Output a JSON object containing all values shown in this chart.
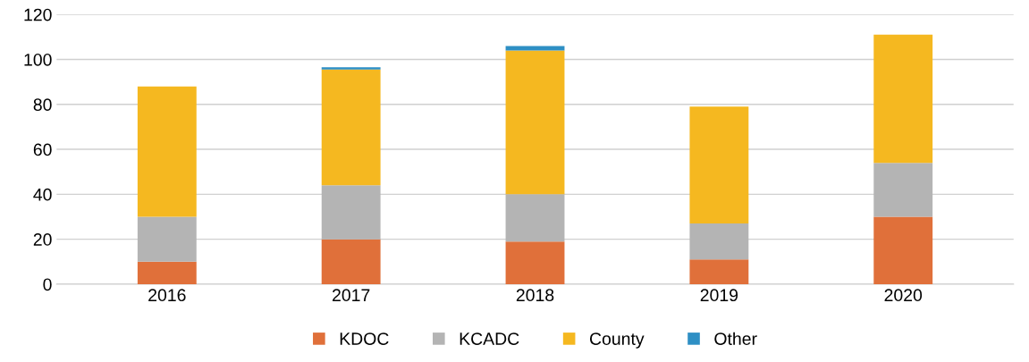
{
  "chart_data": {
    "type": "bar",
    "stacked": true,
    "categories": [
      "2016",
      "2017",
      "2018",
      "2019",
      "2020"
    ],
    "series": [
      {
        "name": "KDOC",
        "color": "#e0703a",
        "values": [
          10,
          20,
          19,
          11,
          30
        ]
      },
      {
        "name": "KCADC",
        "color": "#b4b4b4",
        "values": [
          20,
          24,
          21,
          16,
          24
        ]
      },
      {
        "name": "County",
        "color": "#f5b820",
        "values": [
          58,
          51.5,
          64,
          52,
          57
        ]
      },
      {
        "name": "Other",
        "color": "#2e8fc4",
        "values": [
          0,
          1,
          2,
          0,
          0
        ]
      }
    ],
    "ylim": [
      0,
      120
    ],
    "yticks": [
      0,
      20,
      40,
      60,
      80,
      100,
      120
    ],
    "grid": "y",
    "legend": "bottom"
  }
}
